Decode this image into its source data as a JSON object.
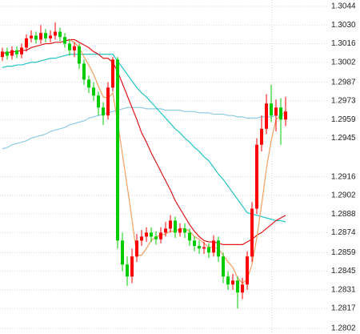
{
  "chart_data": {
    "type": "candlestick",
    "ylim": [
      1.27978,
      1.30488
    ],
    "yticks": [
      1.3044,
      {
        "value": 1.303,
        "label": "1.3030"
      },
      1.3016,
      1.3002,
      1.2987,
      1.2973,
      1.2959,
      1.2945,
      1.2916,
      1.2902,
      1.2888,
      1.2874,
      1.2859,
      1.2845,
      1.2831,
      1.2817,
      1.2802
    ],
    "grid": true,
    "up_color": "#ff0000",
    "down_color": "#00cc00",
    "open": [
      1.3006,
      1.301,
      1.3007,
      1.3011,
      1.3008,
      1.3013,
      1.302,
      1.3022,
      1.3019,
      1.3024,
      1.302,
      1.3022,
      1.3025,
      1.3021,
      1.3016,
      1.3011,
      1.3014,
      1.3001,
      1.2989,
      1.2983,
      1.2977,
      1.2968,
      1.2962,
      1.2983,
      1.3004,
      1.2868,
      1.285,
      1.2841,
      1.2856,
      1.2868,
      1.2871,
      1.2874,
      1.2871,
      1.2869,
      1.2874,
      1.2877,
      1.2883,
      1.2874,
      1.2877,
      1.2874,
      1.2868,
      1.2864,
      1.2862,
      1.2863,
      1.2859,
      1.2868,
      1.2856,
      1.2841,
      1.2835,
      1.2838,
      1.2829,
      1.2835,
      1.2856,
      1.2892,
      1.294,
      1.2952,
      1.2971,
      1.2962,
      1.2968,
      1.2959
    ],
    "high": [
      1.3013,
      1.3013,
      1.3014,
      1.3014,
      1.3016,
      1.3023,
      1.3026,
      1.3025,
      1.303,
      1.3027,
      1.3026,
      1.3032,
      1.3028,
      1.3024,
      1.3019,
      1.3017,
      1.3016,
      1.3004,
      1.2992,
      1.2987,
      1.298,
      1.2972,
      1.2987,
      1.3006,
      1.3006,
      1.2874,
      1.2856,
      1.2862,
      1.2873,
      1.2876,
      1.2878,
      1.2878,
      1.2875,
      1.2878,
      1.2882,
      1.2887,
      1.2886,
      1.2881,
      1.2881,
      1.2877,
      1.2871,
      1.2868,
      1.2867,
      1.2866,
      1.2872,
      1.2871,
      1.2859,
      1.2845,
      1.2843,
      1.2841,
      1.284,
      1.286,
      1.2897,
      1.2945,
      1.2962,
      1.2978,
      1.2985,
      1.2974,
      1.2975,
      1.2976
    ],
    "low": [
      1.3003,
      1.3004,
      1.3004,
      1.3005,
      1.3005,
      1.301,
      1.3017,
      1.3016,
      1.3016,
      1.3017,
      1.3017,
      1.3019,
      1.3018,
      1.3013,
      1.3007,
      1.3006,
      1.2997,
      1.2985,
      1.2979,
      1.2973,
      1.2962,
      1.2955,
      1.2959,
      1.298,
      1.2862,
      1.2845,
      1.2834,
      1.2836,
      1.2852,
      1.2864,
      1.2867,
      1.2867,
      1.2865,
      1.2866,
      1.2871,
      1.2874,
      1.287,
      1.2871,
      1.287,
      1.2864,
      1.286,
      1.2858,
      1.2858,
      1.2855,
      1.2856,
      1.2852,
      1.2836,
      1.2831,
      1.2831,
      1.2817,
      1.2824,
      1.2831,
      1.2852,
      1.2888,
      1.2935,
      1.2948,
      1.2957,
      1.295,
      1.294,
      1.2954
    ],
    "close": [
      1.301,
      1.3007,
      1.3011,
      1.3008,
      1.3013,
      1.302,
      1.3022,
      1.3019,
      1.3024,
      1.302,
      1.3022,
      1.3025,
      1.3021,
      1.3016,
      1.3011,
      1.3014,
      1.3001,
      1.2989,
      1.2983,
      1.2977,
      1.2968,
      1.2962,
      1.2983,
      1.3004,
      1.2868,
      1.285,
      1.2841,
      1.2856,
      1.2868,
      1.2871,
      1.2874,
      1.2871,
      1.2869,
      1.2874,
      1.2877,
      1.2883,
      1.2874,
      1.2877,
      1.2874,
      1.2868,
      1.2864,
      1.2862,
      1.2863,
      1.2859,
      1.2868,
      1.2856,
      1.2841,
      1.2835,
      1.2838,
      1.2829,
      1.2835,
      1.2856,
      1.2892,
      1.294,
      1.2952,
      1.2971,
      1.2962,
      1.2968,
      1.2959,
      1.2965
    ],
    "series": [
      {
        "color": "#8ecbe8",
        "values": [
          1.2937,
          1.2938,
          1.294,
          1.2941,
          1.2942,
          1.2943,
          1.2945,
          1.2946,
          1.2947,
          1.2948,
          1.295,
          1.2951,
          1.2952,
          1.2953,
          1.2955,
          1.2956,
          1.2957,
          1.2958,
          1.296,
          1.2961,
          1.2962,
          1.2963,
          1.2964,
          1.2965,
          1.2966,
          1.2967,
          1.2968,
          1.2968,
          1.2968,
          1.2968,
          1.2967,
          1.2967,
          1.2967,
          1.2967,
          1.2966,
          1.2966,
          1.2966,
          1.2966,
          1.2965,
          1.2965,
          1.2965,
          1.2964,
          1.2964,
          1.2964,
          1.2963,
          1.2963,
          1.2963,
          1.2962,
          1.2962,
          1.2961,
          1.2961,
          1.296,
          1.296,
          1.296,
          1.2961,
          1.2961,
          1.2961,
          1.2962,
          1.2962,
          1.2962
        ]
      },
      {
        "color": "#22c4c4",
        "values": [
          1.2998,
          1.2999,
          1.2999,
          1.3,
          1.3,
          1.3001,
          1.3002,
          1.3002,
          1.3003,
          1.3004,
          1.3005,
          1.3005,
          1.3006,
          1.3007,
          1.3008,
          1.3008,
          1.3008,
          1.3008,
          1.3008,
          1.3008,
          1.3008,
          1.3008,
          1.3008,
          1.3008,
          1.3003,
          1.2998,
          1.2993,
          1.2988,
          1.2983,
          1.2979,
          1.2976,
          1.2972,
          1.2968,
          1.2964,
          1.296,
          1.2956,
          1.2952,
          1.2949,
          1.2945,
          1.2942,
          1.2938,
          1.2935,
          1.2931,
          1.2928,
          1.2923,
          1.2918,
          1.2914,
          1.2909,
          1.2904,
          1.2899,
          1.2894,
          1.2889,
          1.2888,
          1.2887,
          1.2886,
          1.2885,
          1.2884,
          1.2883,
          1.2883,
          1.2882
        ]
      },
      {
        "color": "#e0161b",
        "values": [
          1.3009,
          1.3009,
          1.301,
          1.301,
          1.3011,
          1.3011,
          1.3013,
          1.3014,
          1.3015,
          1.3016,
          1.3016,
          1.3017,
          1.3017,
          1.3018,
          1.3019,
          1.3019,
          1.3017,
          1.3015,
          1.3013,
          1.301,
          1.3008,
          1.3005,
          1.3005,
          1.3002,
          1.2995,
          1.2986,
          1.2977,
          1.2968,
          1.2959,
          1.2949,
          1.2942,
          1.2934,
          1.2927,
          1.292,
          1.2913,
          1.2906,
          1.2898,
          1.2892,
          1.2886,
          1.288,
          1.2875,
          1.2871,
          1.2868,
          1.2867,
          1.2867,
          1.2866,
          1.2865,
          1.2865,
          1.2865,
          1.2865,
          1.2865,
          1.2867,
          1.2869,
          1.2872,
          1.2874,
          1.2877,
          1.288,
          1.2883,
          1.2885,
          1.2887
        ]
      },
      {
        "color": "#f0a060",
        "values": [
          null,
          null,
          null,
          null,
          null,
          null,
          null,
          null,
          null,
          null,
          null,
          null,
          null,
          null,
          1.3019,
          1.3017,
          1.3013,
          1.3006,
          1.3,
          1.2993,
          1.2984,
          1.2976,
          1.2975,
          1.2979,
          1.2957,
          1.2933,
          1.2909,
          1.2884,
          1.2857,
          1.2857,
          1.2862,
          1.2868,
          1.2871,
          1.2872,
          1.2873,
          1.2875,
          1.2875,
          1.2877,
          1.2877,
          1.2875,
          1.2871,
          1.2869,
          1.2866,
          1.2863,
          1.2863,
          1.2862,
          1.2857,
          1.2852,
          1.2848,
          1.284,
          1.2836,
          1.2839,
          1.285,
          1.287,
          1.2895,
          1.2922,
          1.2943,
          1.2959,
          1.2962,
          1.2965
        ]
      }
    ]
  }
}
